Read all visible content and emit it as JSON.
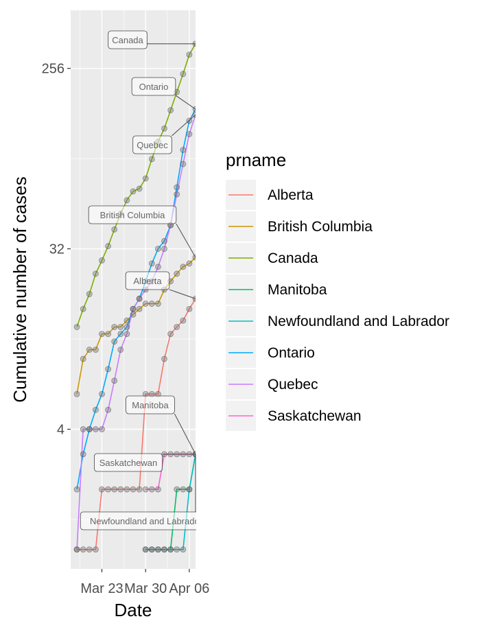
{
  "chart_data": {
    "type": "line",
    "title": "",
    "xlabel": "Date",
    "ylabel": "Cumulative number of cases",
    "y_scale": "log2",
    "x_start_date": "2020-03-19",
    "xlim": [
      -1,
      19
    ],
    "ylim": [
      0.8,
      500
    ],
    "grid": true,
    "x_ticks": [
      {
        "value": 4,
        "label": "Mar 23"
      },
      {
        "value": 11,
        "label": "Mar 30"
      },
      {
        "value": 18,
        "label": "Apr 06"
      }
    ],
    "y_ticks": [
      {
        "value": 4,
        "label": "4"
      },
      {
        "value": 32,
        "label": "32"
      },
      {
        "value": 256,
        "label": "256"
      }
    ],
    "legend": {
      "title": "prname",
      "position": "right"
    },
    "series": [
      {
        "name": "Alberta",
        "color": "#F8766D",
        "label": "Alberta",
        "x": [
          0,
          1,
          2,
          3,
          4,
          5,
          6,
          7,
          8,
          9,
          10,
          11,
          12,
          13,
          14,
          15,
          16,
          17,
          18,
          19
        ],
        "y": [
          1,
          1,
          1,
          1,
          2,
          2,
          2,
          2,
          2,
          2,
          2,
          6,
          6,
          6,
          9,
          12,
          13,
          14,
          16,
          18
        ]
      },
      {
        "name": "British Columbia",
        "color": "#CD9600",
        "label": "British Columbia",
        "x": [
          0,
          1,
          2,
          3,
          4,
          5,
          6,
          7,
          8,
          9,
          10,
          11,
          12,
          13,
          14,
          15,
          16,
          17,
          18,
          19
        ],
        "y": [
          6,
          9,
          10,
          10,
          12,
          12,
          13,
          13,
          14,
          15,
          16,
          17,
          17,
          17,
          20,
          22,
          24,
          26,
          27,
          29
        ]
      },
      {
        "name": "Canada",
        "color": "#7CAE00",
        "label": "Canada",
        "x": [
          0,
          1,
          2,
          3,
          4,
          5,
          6,
          7,
          8,
          9,
          10,
          11,
          12,
          13,
          14,
          15,
          16,
          17,
          18,
          19
        ],
        "y": [
          13,
          16,
          19,
          24,
          28,
          33,
          40,
          48,
          56,
          62,
          64,
          72,
          90,
          110,
          128,
          158,
          195,
          240,
          300,
          340
        ]
      },
      {
        "name": "Manitoba",
        "color": "#00BE67",
        "label": "Manitoba",
        "x": [
          11,
          12,
          13,
          14,
          15,
          16,
          17,
          18,
          19
        ],
        "y": [
          1,
          1,
          1,
          1,
          1,
          2,
          2,
          2,
          3
        ]
      },
      {
        "name": "Newfoundland and Labrador",
        "color": "#00BFC4",
        "label": "Newfoundland and Labrador",
        "x": [
          11,
          12,
          13,
          14,
          15,
          16,
          17,
          18,
          19
        ],
        "y": [
          1,
          1,
          1,
          1,
          1,
          1,
          1,
          2,
          3
        ]
      },
      {
        "name": "Ontario",
        "color": "#00A9FF",
        "label": "Ontario",
        "x": [
          0,
          1,
          2,
          3,
          4,
          5,
          6,
          7,
          8,
          9,
          10,
          11,
          12,
          13,
          14,
          15,
          16,
          17,
          18,
          19
        ],
        "y": [
          2,
          3,
          4,
          5,
          6,
          8,
          11,
          12,
          13,
          16,
          18,
          22,
          27,
          32,
          35,
          42,
          65,
          100,
          140,
          160
        ]
      },
      {
        "name": "Quebec",
        "color": "#C77CFF",
        "label": "Quebec",
        "x": [
          0,
          1,
          2,
          3,
          4,
          5,
          6,
          7,
          8,
          9,
          10,
          11,
          12,
          13,
          14,
          15,
          16,
          17,
          18,
          19
        ],
        "y": [
          1,
          4,
          4,
          4,
          4,
          5,
          7,
          10,
          12,
          16,
          18,
          20,
          22,
          26,
          32,
          42,
          60,
          85,
          120,
          150
        ]
      },
      {
        "name": "Saskatchewan",
        "color": "#FF61CC",
        "label": "Saskatchewan",
        "x": [
          11,
          12,
          13,
          14,
          15,
          16,
          17,
          18,
          19
        ],
        "y": [
          2,
          2,
          2,
          3,
          3,
          3,
          3,
          3,
          3
        ]
      }
    ]
  }
}
